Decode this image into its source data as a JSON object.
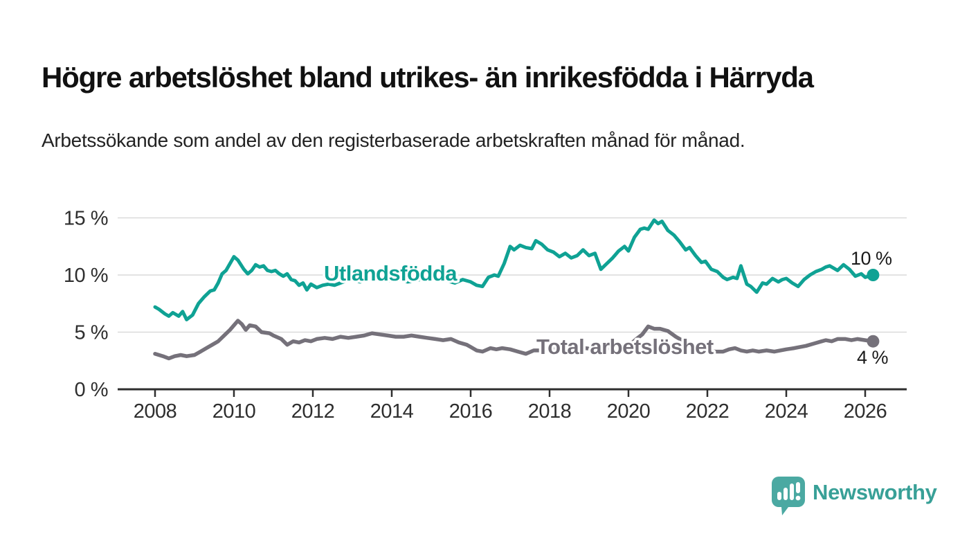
{
  "header": {
    "title": "Högre arbetslöshet bland utrikes- än inrikesfödda i Härryda",
    "subtitle": "Arbetssökande som andel av den registerbaserade arbetskraften månad för månad."
  },
  "chart_data": {
    "type": "line",
    "title": "Högre arbetslöshet bland utrikes- än inrikesfödda i Härryda",
    "subtitle": "Arbetssökande som andel av den registerbaserade arbetskraften månad för månad.",
    "grid": "horizontal",
    "legend_position": "inline-labels",
    "x_axis": {
      "ticks": [
        2008,
        2010,
        2012,
        2014,
        2016,
        2018,
        2020,
        2022,
        2024,
        2026
      ],
      "range": [
        2007.05,
        2027.05
      ],
      "unit": "year"
    },
    "y_axis": {
      "ticks": [
        0,
        5,
        10,
        15
      ],
      "tick_labels": [
        "0 %",
        "5 %",
        "10 %",
        "15 %"
      ],
      "range": [
        0,
        16.8
      ],
      "unit": "%"
    },
    "series": [
      {
        "name": "Utlandsfödda",
        "color": "#0FA294",
        "end_label": "10 %",
        "end_value": 10,
        "points": [
          [
            2008.0,
            7.2
          ],
          [
            2008.1,
            7.0
          ],
          [
            2008.25,
            6.6
          ],
          [
            2008.35,
            6.4
          ],
          [
            2008.45,
            6.7
          ],
          [
            2008.6,
            6.4
          ],
          [
            2008.7,
            6.8
          ],
          [
            2008.8,
            6.1
          ],
          [
            2008.95,
            6.5
          ],
          [
            2009.1,
            7.5
          ],
          [
            2009.25,
            8.1
          ],
          [
            2009.4,
            8.6
          ],
          [
            2009.5,
            8.7
          ],
          [
            2009.6,
            9.3
          ],
          [
            2009.7,
            10.1
          ],
          [
            2009.8,
            10.4
          ],
          [
            2009.9,
            11.0
          ],
          [
            2010.0,
            11.6
          ],
          [
            2010.1,
            11.3
          ],
          [
            2010.25,
            10.5
          ],
          [
            2010.35,
            10.1
          ],
          [
            2010.45,
            10.4
          ],
          [
            2010.55,
            10.9
          ],
          [
            2010.65,
            10.7
          ],
          [
            2010.75,
            10.8
          ],
          [
            2010.85,
            10.4
          ],
          [
            2010.95,
            10.3
          ],
          [
            2011.05,
            10.4
          ],
          [
            2011.15,
            10.1
          ],
          [
            2011.25,
            9.9
          ],
          [
            2011.35,
            10.1
          ],
          [
            2011.45,
            9.6
          ],
          [
            2011.55,
            9.5
          ],
          [
            2011.65,
            9.1
          ],
          [
            2011.75,
            9.3
          ],
          [
            2011.85,
            8.7
          ],
          [
            2011.95,
            9.2
          ],
          [
            2012.1,
            8.9
          ],
          [
            2012.25,
            9.1
          ],
          [
            2012.4,
            9.2
          ],
          [
            2012.55,
            9.1
          ],
          [
            2012.7,
            9.3
          ],
          [
            2012.85,
            9.5
          ],
          [
            2013.0,
            9.6
          ],
          [
            2013.2,
            9.4
          ],
          [
            2013.4,
            9.7
          ],
          [
            2013.6,
            9.8
          ],
          [
            2013.8,
            9.6
          ],
          [
            2014.0,
            9.5
          ],
          [
            2014.2,
            9.6
          ],
          [
            2014.4,
            9.4
          ],
          [
            2014.6,
            9.5
          ],
          [
            2014.8,
            9.7
          ],
          [
            2015.0,
            9.9
          ],
          [
            2015.2,
            9.7
          ],
          [
            2015.4,
            9.5
          ],
          [
            2015.6,
            9.3
          ],
          [
            2015.8,
            9.6
          ],
          [
            2016.0,
            9.4
          ],
          [
            2016.15,
            9.1
          ],
          [
            2016.3,
            9.0
          ],
          [
            2016.45,
            9.8
          ],
          [
            2016.6,
            10.0
          ],
          [
            2016.7,
            9.9
          ],
          [
            2016.85,
            11.0
          ],
          [
            2017.0,
            12.5
          ],
          [
            2017.1,
            12.2
          ],
          [
            2017.25,
            12.6
          ],
          [
            2017.4,
            12.4
          ],
          [
            2017.55,
            12.3
          ],
          [
            2017.65,
            13.0
          ],
          [
            2017.8,
            12.7
          ],
          [
            2017.95,
            12.2
          ],
          [
            2018.1,
            12.0
          ],
          [
            2018.25,
            11.6
          ],
          [
            2018.4,
            11.9
          ],
          [
            2018.55,
            11.5
          ],
          [
            2018.7,
            11.7
          ],
          [
            2018.85,
            12.2
          ],
          [
            2019.0,
            11.7
          ],
          [
            2019.15,
            11.9
          ],
          [
            2019.3,
            10.5
          ],
          [
            2019.45,
            11.0
          ],
          [
            2019.6,
            11.5
          ],
          [
            2019.75,
            12.1
          ],
          [
            2019.9,
            12.5
          ],
          [
            2020.0,
            12.1
          ],
          [
            2020.15,
            13.3
          ],
          [
            2020.3,
            14.0
          ],
          [
            2020.4,
            14.1
          ],
          [
            2020.5,
            14.0
          ],
          [
            2020.65,
            14.8
          ],
          [
            2020.75,
            14.5
          ],
          [
            2020.85,
            14.7
          ],
          [
            2021.0,
            13.9
          ],
          [
            2021.15,
            13.5
          ],
          [
            2021.3,
            12.9
          ],
          [
            2021.45,
            12.2
          ],
          [
            2021.55,
            12.4
          ],
          [
            2021.7,
            11.7
          ],
          [
            2021.85,
            11.1
          ],
          [
            2021.95,
            11.2
          ],
          [
            2022.1,
            10.5
          ],
          [
            2022.25,
            10.3
          ],
          [
            2022.4,
            9.8
          ],
          [
            2022.5,
            9.6
          ],
          [
            2022.65,
            9.8
          ],
          [
            2022.75,
            9.7
          ],
          [
            2022.85,
            10.8
          ],
          [
            2023.0,
            9.2
          ],
          [
            2023.1,
            9.0
          ],
          [
            2023.25,
            8.5
          ],
          [
            2023.4,
            9.3
          ],
          [
            2023.5,
            9.2
          ],
          [
            2023.65,
            9.7
          ],
          [
            2023.8,
            9.4
          ],
          [
            2023.9,
            9.6
          ],
          [
            2024.0,
            9.7
          ],
          [
            2024.15,
            9.3
          ],
          [
            2024.3,
            9.0
          ],
          [
            2024.45,
            9.6
          ],
          [
            2024.6,
            10.0
          ],
          [
            2024.75,
            10.3
          ],
          [
            2024.9,
            10.5
          ],
          [
            2025.0,
            10.7
          ],
          [
            2025.1,
            10.8
          ],
          [
            2025.2,
            10.6
          ],
          [
            2025.3,
            10.4
          ],
          [
            2025.45,
            10.9
          ],
          [
            2025.6,
            10.5
          ],
          [
            2025.75,
            9.9
          ],
          [
            2025.9,
            10.1
          ],
          [
            2026.0,
            9.8
          ],
          [
            2026.2,
            10.0
          ]
        ]
      },
      {
        "name": "Total arbetslöshet",
        "color": "#75717A",
        "end_label": "4 %",
        "end_value": 4,
        "points": [
          [
            2008.0,
            3.1
          ],
          [
            2008.2,
            2.9
          ],
          [
            2008.35,
            2.7
          ],
          [
            2008.5,
            2.9
          ],
          [
            2008.65,
            3.0
          ],
          [
            2008.8,
            2.9
          ],
          [
            2009.0,
            3.0
          ],
          [
            2009.15,
            3.3
          ],
          [
            2009.3,
            3.6
          ],
          [
            2009.45,
            3.9
          ],
          [
            2009.6,
            4.2
          ],
          [
            2009.75,
            4.7
          ],
          [
            2009.9,
            5.2
          ],
          [
            2010.0,
            5.6
          ],
          [
            2010.1,
            6.0
          ],
          [
            2010.2,
            5.7
          ],
          [
            2010.3,
            5.2
          ],
          [
            2010.4,
            5.6
          ],
          [
            2010.55,
            5.5
          ],
          [
            2010.7,
            5.0
          ],
          [
            2010.9,
            4.9
          ],
          [
            2011.0,
            4.7
          ],
          [
            2011.2,
            4.4
          ],
          [
            2011.35,
            3.9
          ],
          [
            2011.5,
            4.2
          ],
          [
            2011.65,
            4.1
          ],
          [
            2011.8,
            4.3
          ],
          [
            2011.95,
            4.2
          ],
          [
            2012.1,
            4.4
          ],
          [
            2012.3,
            4.5
          ],
          [
            2012.5,
            4.4
          ],
          [
            2012.7,
            4.6
          ],
          [
            2012.9,
            4.5
          ],
          [
            2013.1,
            4.6
          ],
          [
            2013.3,
            4.7
          ],
          [
            2013.5,
            4.9
          ],
          [
            2013.7,
            4.8
          ],
          [
            2013.9,
            4.7
          ],
          [
            2014.1,
            4.6
          ],
          [
            2014.3,
            4.6
          ],
          [
            2014.5,
            4.7
          ],
          [
            2014.7,
            4.6
          ],
          [
            2014.9,
            4.5
          ],
          [
            2015.1,
            4.4
          ],
          [
            2015.3,
            4.3
          ],
          [
            2015.5,
            4.4
          ],
          [
            2015.7,
            4.1
          ],
          [
            2015.9,
            3.9
          ],
          [
            2016.0,
            3.7
          ],
          [
            2016.15,
            3.4
          ],
          [
            2016.3,
            3.3
          ],
          [
            2016.5,
            3.6
          ],
          [
            2016.65,
            3.5
          ],
          [
            2016.8,
            3.6
          ],
          [
            2017.0,
            3.5
          ],
          [
            2017.2,
            3.3
          ],
          [
            2017.4,
            3.1
          ],
          [
            2017.6,
            3.4
          ],
          [
            2017.8,
            3.4
          ],
          [
            2018.0,
            3.5
          ],
          [
            2018.3,
            3.6
          ],
          [
            2018.6,
            3.5
          ],
          [
            2018.9,
            3.6
          ],
          [
            2019.2,
            3.5
          ],
          [
            2019.5,
            3.6
          ],
          [
            2019.8,
            3.7
          ],
          [
            2020.0,
            3.8
          ],
          [
            2020.2,
            4.4
          ],
          [
            2020.35,
            4.8
          ],
          [
            2020.5,
            5.5
          ],
          [
            2020.65,
            5.3
          ],
          [
            2020.8,
            5.3
          ],
          [
            2021.0,
            5.1
          ],
          [
            2021.2,
            4.6
          ],
          [
            2021.4,
            4.2
          ],
          [
            2021.6,
            3.8
          ],
          [
            2021.8,
            3.5
          ],
          [
            2022.0,
            3.4
          ],
          [
            2022.2,
            3.3
          ],
          [
            2022.4,
            3.3
          ],
          [
            2022.55,
            3.5
          ],
          [
            2022.7,
            3.6
          ],
          [
            2022.85,
            3.4
          ],
          [
            2023.0,
            3.3
          ],
          [
            2023.15,
            3.4
          ],
          [
            2023.3,
            3.3
          ],
          [
            2023.5,
            3.4
          ],
          [
            2023.7,
            3.3
          ],
          [
            2023.85,
            3.4
          ],
          [
            2024.0,
            3.5
          ],
          [
            2024.2,
            3.6
          ],
          [
            2024.35,
            3.7
          ],
          [
            2024.5,
            3.8
          ],
          [
            2024.7,
            4.0
          ],
          [
            2024.9,
            4.2
          ],
          [
            2025.0,
            4.3
          ],
          [
            2025.15,
            4.2
          ],
          [
            2025.3,
            4.4
          ],
          [
            2025.5,
            4.4
          ],
          [
            2025.65,
            4.3
          ],
          [
            2025.8,
            4.4
          ],
          [
            2026.0,
            4.3
          ],
          [
            2026.2,
            4.2
          ]
        ]
      }
    ]
  },
  "footer": {
    "brand": "Newsworthy",
    "logo_icon": "speech-bubble-bar-chart-icon"
  },
  "colors": {
    "accent_teal": "#0FA294",
    "series_gray": "#75717A",
    "grid": "#DADADA",
    "axis": "#2E2E2E",
    "text_dark": "#1A1A1A",
    "logo_teal": "#4BA9A2"
  }
}
